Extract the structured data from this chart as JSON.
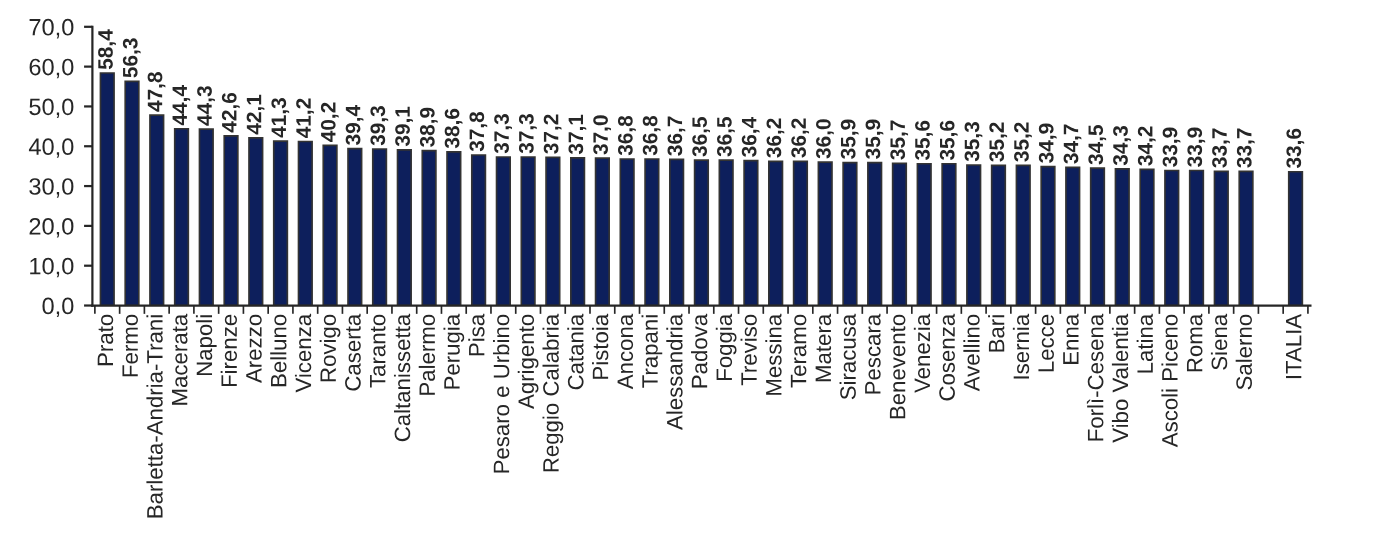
{
  "chart_data": {
    "type": "bar",
    "categories": [
      "Prato",
      "Fermo",
      "Barletta-Andria-Trani",
      "Macerata",
      "Napoli",
      "Firenze",
      "Arezzo",
      "Belluno",
      "Vicenza",
      "Rovigo",
      "Caserta",
      "Taranto",
      "Caltanissetta",
      "Palermo",
      "Perugia",
      "Pisa",
      "Pesaro e Urbino",
      "Agrigento",
      "Reggio Calabria",
      "Catania",
      "Pistoia",
      "Ancona",
      "Trapani",
      "Alessandria",
      "Padova",
      "Foggia",
      "Treviso",
      "Messina",
      "Teramo",
      "Matera",
      "Siracusa",
      "Pescara",
      "Benevento",
      "Venezia",
      "Cosenza",
      "Avellino",
      "Bari",
      "Isernia",
      "Lecce",
      "Enna",
      "Forlì-Cesena",
      "Vibo Valentia",
      "Latina",
      "Ascoli Piceno",
      "Roma",
      "Siena",
      "Salerno",
      null,
      "ITALIA"
    ],
    "values": [
      58.4,
      56.3,
      47.8,
      44.4,
      44.3,
      42.6,
      42.1,
      41.3,
      41.2,
      40.2,
      39.4,
      39.3,
      39.1,
      38.9,
      38.6,
      37.8,
      37.3,
      37.3,
      37.2,
      37.1,
      37.0,
      36.8,
      36.8,
      36.7,
      36.5,
      36.5,
      36.4,
      36.2,
      36.2,
      36.0,
      35.9,
      35.9,
      35.7,
      35.6,
      35.6,
      35.3,
      35.2,
      35.2,
      34.9,
      34.7,
      34.5,
      34.3,
      34.2,
      33.9,
      33.9,
      33.7,
      33.7,
      null,
      33.6
    ],
    "value_labels": [
      "58,4",
      "56,3",
      "47,8",
      "44,4",
      "44,3",
      "42,6",
      "42,1",
      "41,3",
      "41,2",
      "40,2",
      "39,4",
      "39,3",
      "39,1",
      "38,9",
      "38,6",
      "37,8",
      "37,3",
      "37,3",
      "37,2",
      "37,1",
      "37,0",
      "36,8",
      "36,8",
      "36,7",
      "36,5",
      "36,5",
      "36,4",
      "36,2",
      "36,2",
      "36,0",
      "35,9",
      "35,9",
      "35,7",
      "35,6",
      "35,6",
      "35,3",
      "35,2",
      "35,2",
      "34,9",
      "34,7",
      "34,5",
      "34,3",
      "34,2",
      "33,9",
      "33,9",
      "33,7",
      "33,7",
      null,
      "33,6"
    ],
    "color": "#0d1f5c",
    "ylim": [
      0,
      70
    ],
    "yticks": [
      {
        "value": 0,
        "label": "0,0"
      },
      {
        "value": 10,
        "label": "10,0"
      },
      {
        "value": 20,
        "label": "20,0"
      },
      {
        "value": 30,
        "label": "30,0"
      },
      {
        "value": 40,
        "label": "40,0"
      },
      {
        "value": 50,
        "label": "50,0"
      },
      {
        "value": 60,
        "label": "60,0"
      },
      {
        "value": 70,
        "label": "70,0"
      }
    ],
    "grid": false,
    "legend": false
  }
}
